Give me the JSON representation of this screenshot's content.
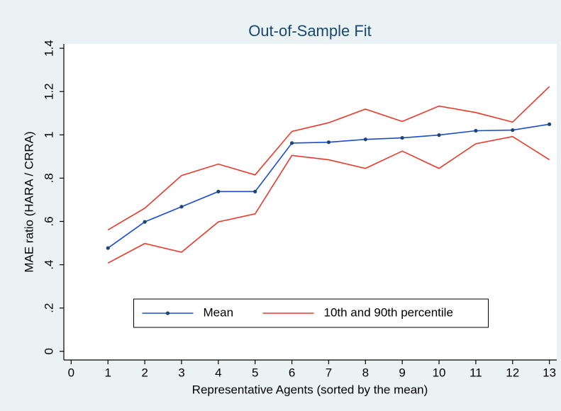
{
  "chart_data": {
    "type": "line",
    "title": "Out-of-Sample Fit",
    "x_label": "Representative Agents (sorted by the mean)",
    "y_label": "MAE ratio (HARA / CRRA)",
    "x": [
      1,
      2,
      3,
      4,
      5,
      6,
      7,
      8,
      9,
      10,
      11,
      12,
      13
    ],
    "series": [
      {
        "name": "Mean",
        "color": "#1a4bd6",
        "values": [
          0.477,
          0.598,
          0.668,
          0.738,
          0.738,
          0.962,
          0.966,
          0.979,
          0.986,
          0.999,
          1.019,
          1.022,
          1.049
        ]
      },
      {
        "name": "10th and 90th percentile",
        "color": "#e8392b",
        "upper": [
          0.561,
          0.661,
          0.812,
          0.865,
          0.815,
          1.016,
          1.056,
          1.119,
          1.062,
          1.133,
          1.103,
          1.059,
          1.223
        ],
        "lower": [
          0.408,
          0.498,
          0.458,
          0.598,
          0.635,
          0.905,
          0.885,
          0.845,
          0.925,
          0.845,
          0.959,
          0.992,
          0.885
        ]
      }
    ],
    "xlim": [
      -0.2,
      13.2
    ],
    "ylim": [
      -0.04,
      1.42
    ],
    "xticks": [
      0,
      1,
      2,
      3,
      4,
      5,
      6,
      7,
      8,
      9,
      10,
      11,
      12,
      13
    ],
    "yticks": [
      0,
      {
        "value": 0.2,
        "label": ".2"
      },
      {
        "value": 0.4,
        "label": ".4"
      },
      {
        "value": 0.6,
        "label": ".6"
      },
      {
        "value": 0.8,
        "label": ".8"
      },
      1,
      1.2,
      1.4
    ],
    "grid": false,
    "legend": "bottom",
    "title_color": "#1a476f"
  }
}
